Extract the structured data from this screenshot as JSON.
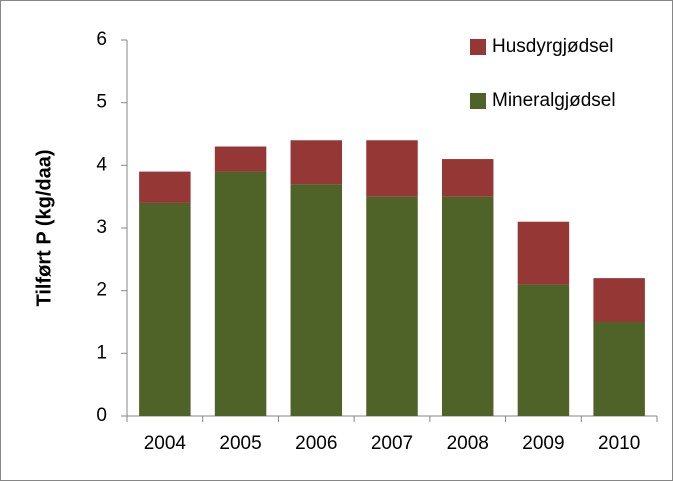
{
  "chart_data": {
    "type": "bar",
    "stacked": true,
    "y_label": "Tilført P (kg/daa)",
    "categories": [
      "2004",
      "2005",
      "2006",
      "2007",
      "2008",
      "2009",
      "2010"
    ],
    "series": [
      {
        "name": "Mineralgjødsel",
        "color": "#4f6228",
        "values": [
          3.4,
          3.9,
          3.7,
          3.5,
          3.5,
          2.1,
          1.5
        ]
      },
      {
        "name": "Husdyrgjødsel",
        "color": "#953735",
        "values": [
          0.5,
          0.4,
          0.7,
          0.9,
          0.6,
          1.0,
          0.7
        ]
      }
    ],
    "ylim": [
      0,
      6
    ],
    "yticks": [
      0,
      1,
      2,
      3,
      4,
      5,
      6
    ],
    "grid": false,
    "legend": "top-right"
  }
}
